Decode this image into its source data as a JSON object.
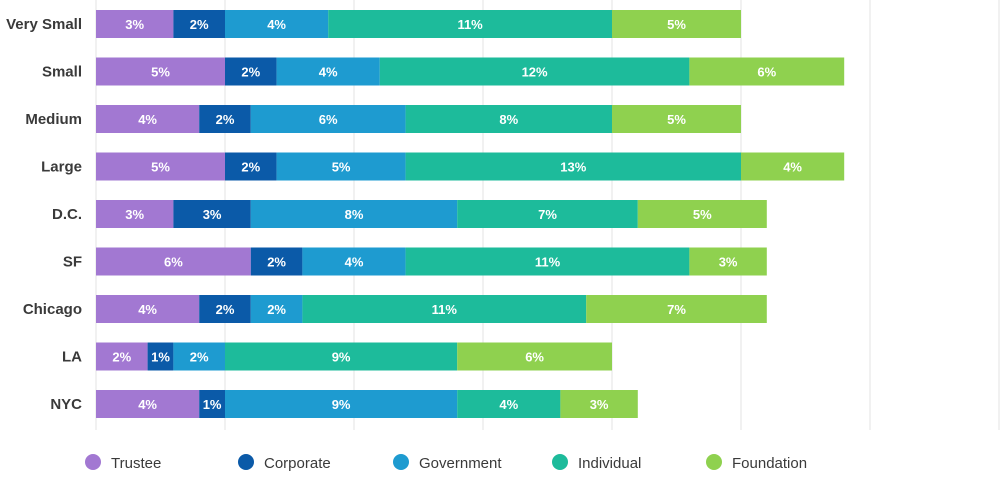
{
  "chart_data": {
    "type": "bar",
    "orientation": "horizontal",
    "stacked": true,
    "title": "",
    "xlabel": "",
    "ylabel": "",
    "xlim": [
      0,
      35
    ],
    "grid": true,
    "legend_position": "bottom",
    "categories": [
      "Very Small",
      "Small",
      "Medium",
      "Large",
      "D.C.",
      "SF",
      "Chicago",
      "LA",
      "NYC"
    ],
    "series": [
      {
        "name": "Trustee",
        "color": "#a278d2",
        "values": [
          3,
          5,
          4,
          5,
          3,
          6,
          4,
          2,
          4
        ]
      },
      {
        "name": "Corporate",
        "color": "#0b5aa8",
        "values": [
          2,
          2,
          2,
          2,
          3,
          2,
          2,
          1,
          1
        ]
      },
      {
        "name": "Government",
        "color": "#1e9bd0",
        "values": [
          4,
          4,
          6,
          5,
          8,
          4,
          2,
          2,
          9
        ]
      },
      {
        "name": "Individual",
        "color": "#1dbb9b",
        "values": [
          11,
          12,
          8,
          13,
          7,
          11,
          11,
          9,
          4
        ]
      },
      {
        "name": "Foundation",
        "color": "#8fd14f",
        "values": [
          5,
          6,
          5,
          4,
          5,
          3,
          7,
          6,
          3
        ]
      }
    ]
  }
}
